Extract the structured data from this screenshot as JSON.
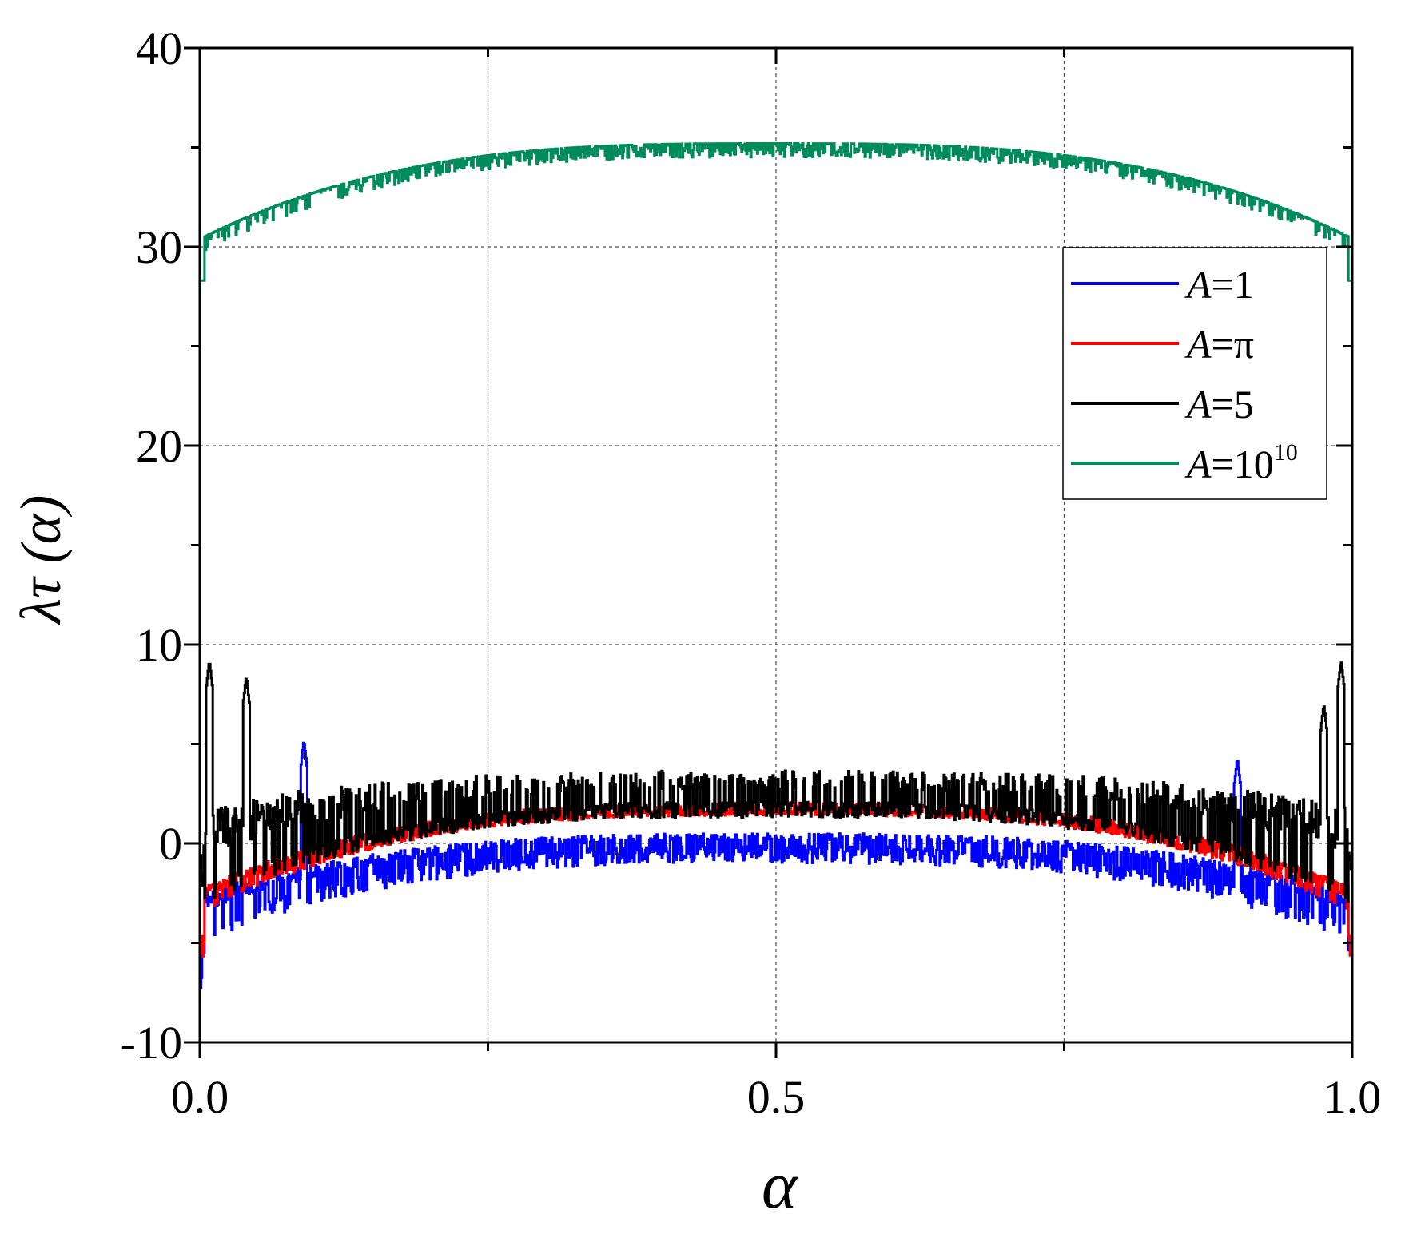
{
  "chart_data": {
    "type": "line",
    "xlabel": "α",
    "ylabel": "λτ (α)",
    "xlim": [
      0.0,
      1.0
    ],
    "ylim": [
      -10,
      40
    ],
    "x_ticks": [
      0.0,
      0.5,
      1.0
    ],
    "x_tick_labels": [
      "0.0",
      "0.5",
      "1.0"
    ],
    "x_minor_ticks": [
      0.25,
      0.75
    ],
    "y_ticks": [
      -10,
      0,
      10,
      20,
      30,
      40
    ],
    "y_tick_labels": [
      "-10",
      "0",
      "10",
      "20",
      "30",
      "40"
    ],
    "y_minor_ticks": [
      -5,
      5,
      15,
      25,
      35
    ],
    "grid": true,
    "legend_position": "top-right",
    "series": [
      {
        "name": "A=1",
        "legend_prefix": "A",
        "legend_value": "=1",
        "legend_sup": "",
        "color": "#0000ff",
        "center": -0.1,
        "band": 0.9,
        "edge_drop": 4.0,
        "edge_low": -6.5,
        "spike_height": 1.0,
        "peaks": [
          [
            0.09,
            5.2
          ],
          [
            0.9,
            4.3
          ]
        ]
      },
      {
        "name": "A=π",
        "legend_prefix": "A",
        "legend_value": "=π",
        "legend_sup": "",
        "color": "#ff0000",
        "center": 1.7,
        "band": 0.3,
        "edge_drop": 4.9,
        "edge_low": -5.5,
        "spike_height": 0.6,
        "peaks": []
      },
      {
        "name": "A=5",
        "legend_prefix": "A",
        "legend_value": "=5",
        "legend_sup": "",
        "color": "#000000",
        "center": 2.1,
        "band": 0.8,
        "edge_drop": 4.4,
        "edge_low": -4.0,
        "spike_height": 2.6,
        "peaks": [
          [
            0.008,
            9.2
          ],
          [
            0.04,
            8.4
          ],
          [
            0.99,
            9.2
          ],
          [
            0.975,
            7.0
          ]
        ]
      },
      {
        "name": "A=10^10",
        "legend_prefix": "A",
        "legend_value": "=10",
        "legend_sup": "10",
        "color": "#008b5a",
        "center": 35.2,
        "band": 0.7,
        "edge_drop": 4.8,
        "edge_low": 28.3,
        "spike_height": 0.0,
        "peaks": []
      }
    ]
  }
}
